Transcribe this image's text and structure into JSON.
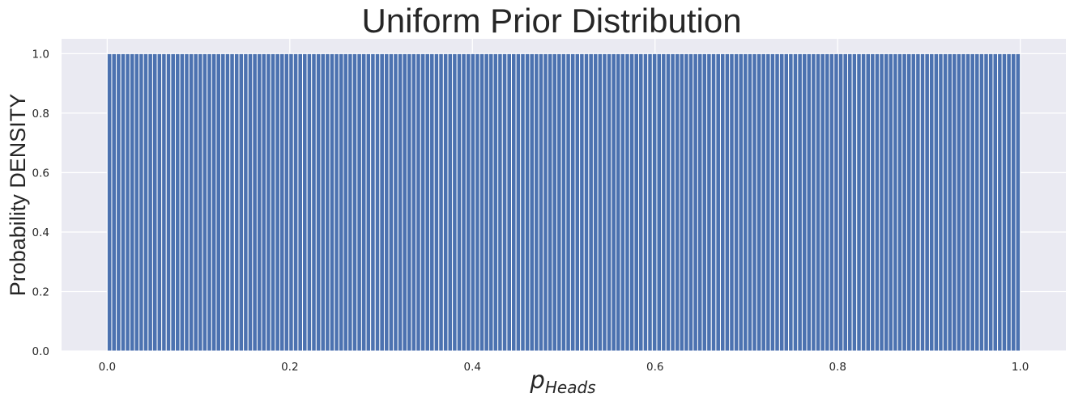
{
  "chart_data": {
    "type": "bar",
    "title": "Uniform Prior Distribution",
    "xlabel_main": "p",
    "xlabel_sub": "Heads",
    "ylabel": "Probability DENSITY",
    "xlim": [
      -0.05,
      1.05
    ],
    "ylim": [
      0,
      1.05
    ],
    "xticks": [
      "0.0",
      "0.2",
      "0.4",
      "0.6",
      "0.8",
      "1.0"
    ],
    "yticks": [
      "0.0",
      "0.2",
      "0.4",
      "0.6",
      "0.8",
      "1.0"
    ],
    "x_start": 0.0,
    "x_end": 1.0,
    "bins": 201,
    "values": "all 1.0 (uniform density across all bars)",
    "bar_value": 1.0,
    "grid": true,
    "legend": "none",
    "colors": {
      "bar": "#4c72b0",
      "plot_background": "#eaeaf2",
      "grid": "#ffffff",
      "text": "#262626"
    }
  }
}
